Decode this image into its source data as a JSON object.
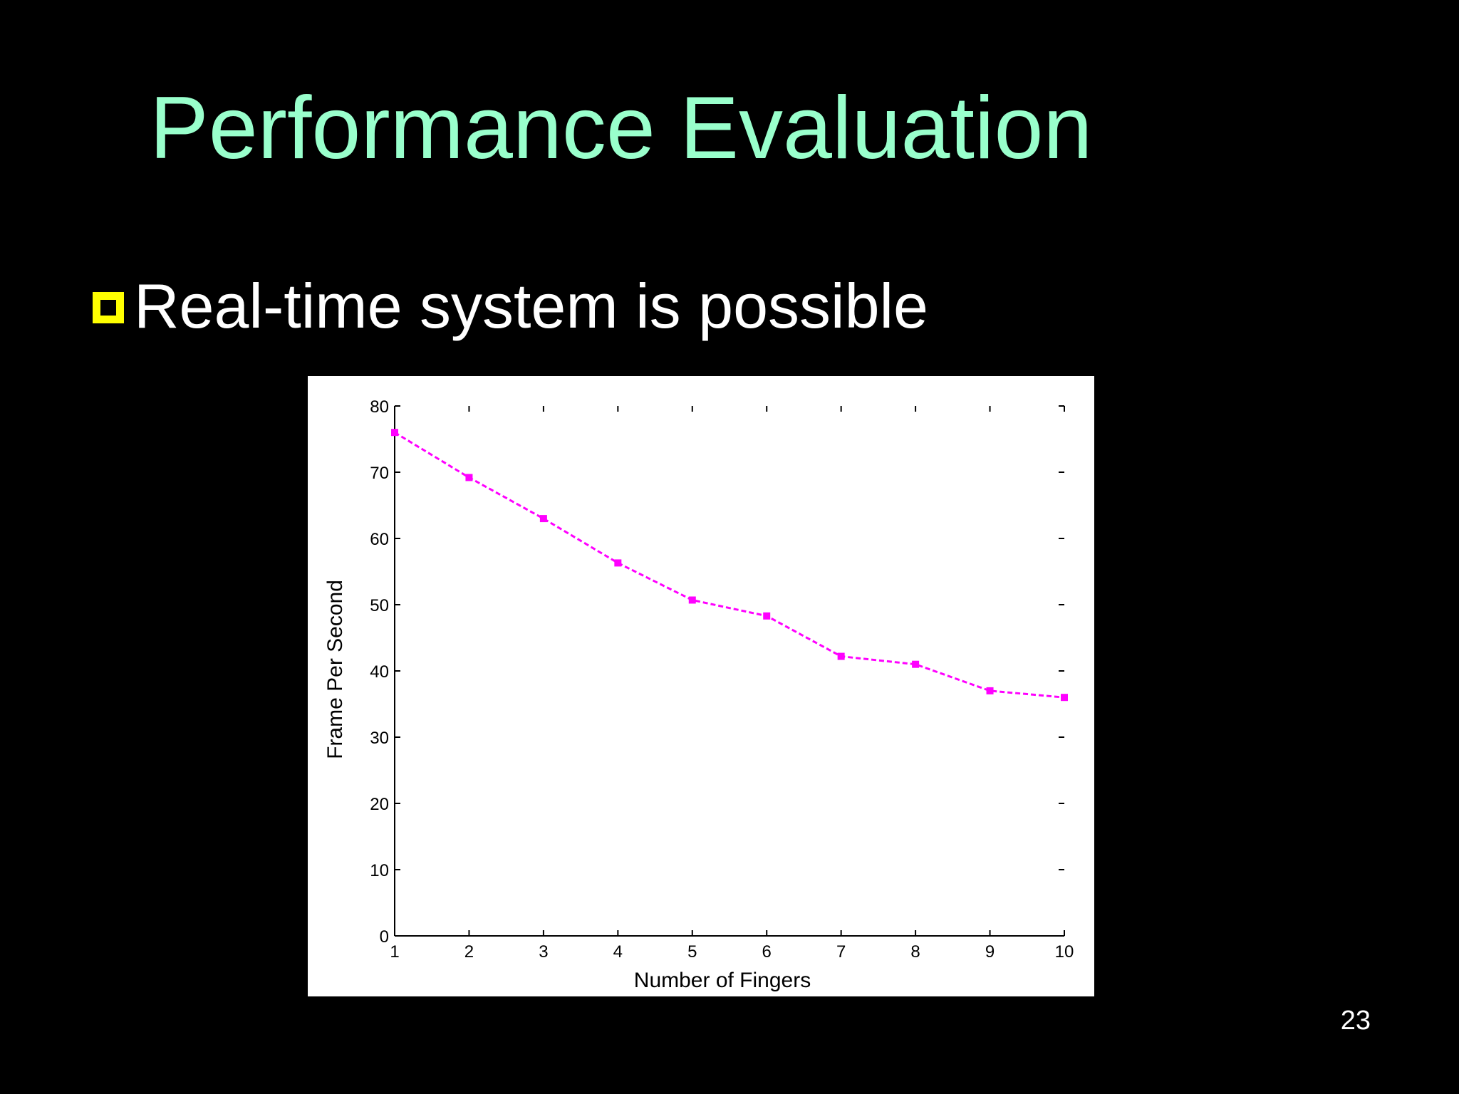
{
  "slide": {
    "title": "Performance Evaluation",
    "bullet": "Real-time system is possible",
    "page_number": "23"
  },
  "colors": {
    "background": "#000000",
    "title": "#99ffcc",
    "bullet_marker": "#ffff00",
    "bullet_text": "#ffffff",
    "series": "#ff00ff"
  },
  "chart_data": {
    "type": "line",
    "x": [
      1,
      2,
      3,
      4,
      5,
      6,
      7,
      8,
      9,
      10
    ],
    "series": [
      {
        "values": [
          76,
          69.2,
          63,
          56.3,
          50.7,
          48.3,
          42.2,
          41,
          37,
          36
        ]
      }
    ],
    "xlabel": "Number of Fingers",
    "ylabel": "Frame Per Second",
    "xlim": [
      1,
      10
    ],
    "ylim": [
      0,
      80
    ],
    "xticks": [
      "1",
      "2",
      "3",
      "4",
      "5",
      "6",
      "7",
      "8",
      "9",
      "10"
    ],
    "yticks": [
      "0",
      "10",
      "20",
      "30",
      "40",
      "50",
      "60",
      "70",
      "80"
    ],
    "line_style": "dashed",
    "marker": "square",
    "grid": false,
    "legend": false
  }
}
